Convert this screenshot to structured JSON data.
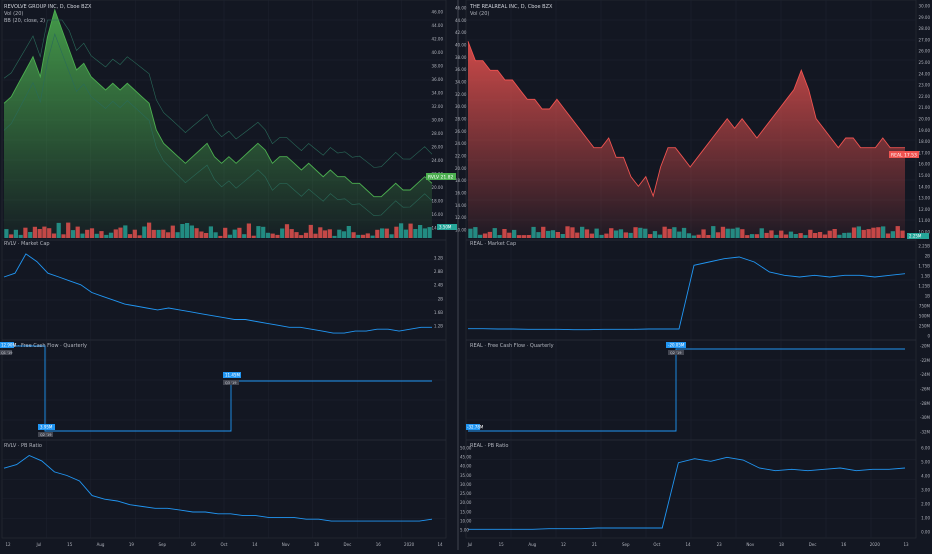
{
  "colors": {
    "bg": "#131722",
    "grid": "#1f2430",
    "border": "#2a2e39",
    "text": "#b2b5be",
    "green": "#4caf50",
    "red": "#ef5350",
    "blue": "#2196f3",
    "volume_up": "#26a69a",
    "volume_down": "#ef5350",
    "bb_band": "#2a6b5a"
  },
  "left": {
    "header": "REVOLVE GROUP INC, D, Cboe BZX",
    "vol_label": "Vol (20)",
    "bb_label": "BB (20, close, 2)",
    "price_ticks": [
      "46.00",
      "44.00",
      "42.00",
      "40.00",
      "38.00",
      "36.00",
      "34.00",
      "32.00",
      "30.00",
      "28.00",
      "26.00",
      "24.00",
      "22.00",
      "20.00",
      "18.00",
      "16.00",
      "14.00"
    ],
    "price_tag": "RVLV 21.82",
    "volume_tag": "3.50M",
    "market_cap_label": "RVLV · Market Cap",
    "market_cap_ticks": [
      "3.2B",
      "2.8B",
      "2.4B",
      "2B",
      "1.6B",
      "1.2B"
    ],
    "fcf_label": "RVLV · Free Cash Flow · Quarterly",
    "fcf_boxes": [
      {
        "value": "12.90M",
        "sub": "Q1 '19"
      },
      {
        "value": "3.95M",
        "sub": "Q2 '19"
      },
      {
        "value": "11.45M",
        "sub": "Q3 '19"
      }
    ],
    "pb_label": "RVLV · PB Ratio",
    "x_ticks": [
      "12",
      "Jul",
      "15",
      "Aug",
      "19",
      "Sep",
      "16",
      "Oct",
      "14",
      "Nov",
      "18",
      "Dec",
      "16",
      "2020",
      "14"
    ]
  },
  "right": {
    "header": "THE REALREAL INC, D, Cboe BZX",
    "vol_label": "Vol (20)",
    "price_ticks": [
      "30.00",
      "29.00",
      "28.00",
      "27.00",
      "26.00",
      "25.00",
      "24.00",
      "23.00",
      "22.00",
      "21.00",
      "20.00",
      "19.00",
      "18.00",
      "17.00",
      "16.00",
      "15.00",
      "14.00",
      "13.00",
      "12.00",
      "11.00",
      "10.00"
    ],
    "price_tag": "REAL 17.53",
    "volume_tag": "2.25M",
    "mid_price_ticks": [
      "46.00",
      "44.00",
      "42.00",
      "40.00",
      "38.00",
      "36.00",
      "34.00",
      "32.00",
      "30.00",
      "28.00",
      "26.00",
      "24.00",
      "22.00",
      "20.00",
      "18.00",
      "16.00",
      "14.00",
      "12.00",
      "10.00"
    ],
    "market_cap_label": "REAL · Market Cap",
    "market_cap_ticks": [
      "2.25B",
      "2B",
      "1.75B",
      "1.5B",
      "1.25B",
      "1B",
      "750M",
      "500M",
      "250M",
      "0"
    ],
    "fcf_label": "REAL · Free Cash Flow · Quarterly",
    "fcf_ticks": [
      "-20M",
      "-22M",
      "-24M",
      "-26M",
      "-28M",
      "-30M",
      "-32M"
    ],
    "fcf_boxes": [
      {
        "value": "-32.78M",
        "sub": "Q1 '19"
      },
      {
        "value": "-20.05M",
        "sub": "Q2 '19"
      }
    ],
    "pb_label": "REAL · PB Ratio",
    "pb_ticks_left": [
      "50.00",
      "45.00",
      "40.00",
      "35.00",
      "30.00",
      "25.00",
      "20.00",
      "15.00",
      "10.00",
      "5.00"
    ],
    "pb_ticks_right": [
      "6.00",
      "5.00",
      "4.00",
      "3.00",
      "2.00",
      "1.00",
      "0.00"
    ],
    "x_ticks": [
      "Jul",
      "15",
      "Aug",
      "12",
      "21",
      "Sep",
      "Oct",
      "14",
      "23",
      "Nov",
      "18",
      "Dec",
      "16",
      "2020",
      "13"
    ]
  },
  "chart_data": [
    {
      "type": "area",
      "title": "REVOLVE GROUP INC, D, Cboe BZX",
      "series": [
        {
          "name": "RVLV",
          "values": [
            33,
            34,
            36,
            38,
            40,
            37,
            43,
            47,
            44,
            41,
            38,
            39,
            37,
            36,
            35,
            36,
            35,
            36,
            35,
            34,
            33,
            29,
            27,
            26,
            25,
            24,
            25,
            26,
            27,
            25,
            24,
            25,
            24,
            25,
            26,
            27,
            26,
            24,
            25,
            25,
            24,
            23,
            24,
            23,
            22,
            23,
            22,
            22,
            21,
            21,
            20,
            19,
            19,
            20,
            21,
            20,
            20,
            21,
            22,
            21
          ]
        }
      ],
      "ylim": [
        14,
        47
      ],
      "ylabel": ""
    },
    {
      "type": "area",
      "title": "THE REALREAL INC, D, Cboe BZX",
      "series": [
        {
          "name": "REAL",
          "values": [
            29,
            27,
            27,
            26,
            26,
            25,
            25,
            24,
            23,
            23,
            22,
            22,
            23,
            22,
            21,
            20,
            19,
            18,
            18,
            19,
            17,
            17,
            15,
            14,
            15,
            13,
            16,
            18,
            18,
            17,
            16,
            17,
            18,
            19,
            20,
            21,
            20,
            21,
            20,
            19,
            20,
            21,
            22,
            23,
            24,
            26,
            24,
            21,
            20,
            19,
            18,
            19,
            19,
            18,
            18,
            18,
            19,
            18,
            18,
            18
          ]
        }
      ],
      "ylim": [
        10,
        31
      ],
      "ylabel": ""
    },
    {
      "type": "line",
      "title": "RVLV · Market Cap",
      "series": [
        {
          "name": "RVLV Market Cap",
          "values": [
            2.6,
            2.7,
            3.2,
            3.0,
            2.7,
            2.6,
            2.5,
            2.4,
            2.2,
            2.1,
            2.0,
            1.9,
            1.85,
            1.8,
            1.75,
            1.8,
            1.75,
            1.7,
            1.65,
            1.6,
            1.55,
            1.5,
            1.5,
            1.45,
            1.4,
            1.35,
            1.3,
            1.3,
            1.25,
            1.2,
            1.15,
            1.15,
            1.2,
            1.2,
            1.25,
            1.25,
            1.2,
            1.25,
            1.3,
            1.3
          ]
        }
      ],
      "ylim": [
        1.1,
        3.3
      ]
    },
    {
      "type": "line",
      "title": "REAL · Market Cap",
      "series": [
        {
          "name": "REAL Market Cap",
          "values": [
            0.1,
            0.1,
            0.09,
            0.09,
            0.08,
            0.08,
            0.08,
            0.07,
            0.07,
            0.08,
            0.08,
            0.08,
            0.09,
            0.09,
            0.09,
            2.0,
            2.1,
            2.2,
            2.25,
            2.1,
            1.8,
            1.7,
            1.65,
            1.7,
            1.65,
            1.7,
            1.7,
            1.65,
            1.7,
            1.75
          ]
        }
      ],
      "ylim": [
        0,
        2.4
      ]
    },
    {
      "type": "line",
      "title": "RVLV · Free Cash Flow · Quarterly",
      "series": [
        {
          "name": "RVLV FCF",
          "values": [
            12.9,
            3.95,
            11.45
          ]
        }
      ],
      "x": [
        "Q1 '19",
        "Q2 '19",
        "Q3 '19"
      ]
    },
    {
      "type": "line",
      "title": "REAL · Free Cash Flow · Quarterly",
      "series": [
        {
          "name": "REAL FCF",
          "values": [
            -32.78,
            -20.05
          ]
        }
      ],
      "x": [
        "Q1 '19",
        "Q2 '19"
      ]
    },
    {
      "type": "line",
      "title": "RVLV · PB Ratio",
      "series": [
        {
          "name": "RVLV PB",
          "values": [
            40,
            42,
            47,
            44,
            38,
            36,
            33,
            25,
            23,
            22,
            20,
            19,
            18,
            18,
            17,
            16,
            16,
            15,
            15,
            14,
            14,
            13,
            13,
            13,
            12,
            12,
            11,
            11,
            11,
            11,
            11,
            11,
            11,
            11,
            12
          ]
        }
      ],
      "ylim": [
        5,
        50
      ]
    },
    {
      "type": "line",
      "title": "REAL · PB Ratio",
      "series": [
        {
          "name": "REAL PB",
          "values": [
            0.2,
            0.2,
            0.2,
            0.2,
            0.2,
            0.25,
            0.25,
            0.25,
            0.3,
            0.3,
            0.3,
            0.3,
            0.3,
            5.2,
            5.5,
            5.3,
            5.6,
            5.4,
            4.8,
            4.6,
            4.7,
            4.6,
            4.7,
            4.8,
            4.6,
            4.7,
            4.7,
            4.8
          ]
        }
      ],
      "ylim": [
        0,
        6
      ]
    }
  ]
}
